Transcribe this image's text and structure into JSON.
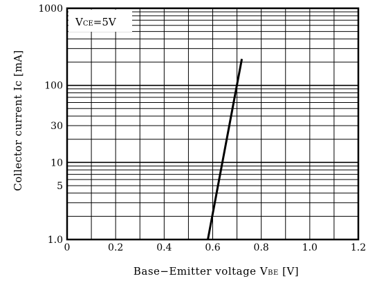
{
  "chart_data": {
    "type": "line",
    "xlabel": {
      "text": "Base−Emitter voltage V",
      "sub": "BE",
      "unit": " [V]"
    },
    "ylabel": "Collector current Ic [mA]",
    "annotation": {
      "text": "V",
      "sub": "CE",
      "rest": "=5V"
    },
    "xlim": [
      0,
      1.2
    ],
    "ylim": [
      1,
      1000
    ],
    "yscale": "log",
    "grid": true,
    "x_ticks": [
      "0",
      "0.2",
      "0.4",
      "0.6",
      "0.8",
      "1.0",
      "1.2"
    ],
    "y_ticks": [
      {
        "value": 1,
        "label": "1.0"
      },
      {
        "value": 5,
        "label": "5"
      },
      {
        "value": 10,
        "label": "10"
      },
      {
        "value": 30,
        "label": "30"
      },
      {
        "value": 100,
        "label": "100"
      },
      {
        "value": 1000,
        "label": "1000"
      }
    ],
    "series": [
      {
        "x": [
          0.58,
          0.72
        ],
        "y": [
          1,
          220
        ]
      }
    ]
  },
  "colors": {
    "line": "#000000",
    "grid": "#000000",
    "background": "#ffffff"
  }
}
